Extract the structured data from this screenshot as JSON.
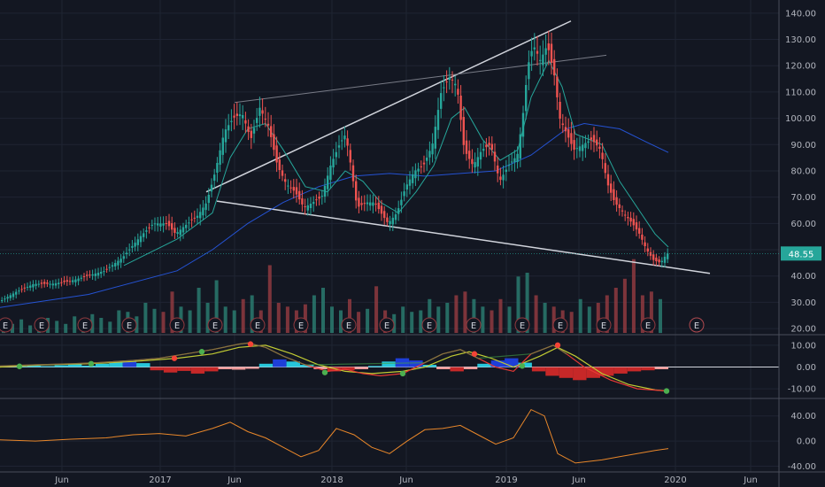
{
  "chart_data": [
    {
      "type": "candlestick",
      "panel": "price",
      "x_labels": [
        "Jun",
        "2017",
        "Jun",
        "2018",
        "Jun",
        "2019",
        "Jun",
        "2020",
        "Jun"
      ],
      "y_ticks": [
        "140.00",
        "130.00",
        "120.00",
        "110.00",
        "100.00",
        "90.00",
        "80.00",
        "70.00",
        "60.00",
        "50.00",
        "40.00",
        "30.00",
        "20.00"
      ],
      "ylim": [
        18,
        145
      ],
      "last_price": "48.55",
      "earnings_marker": "E",
      "price_path": [
        [
          0,
          30
        ],
        [
          20,
          34
        ],
        [
          40,
          37
        ],
        [
          60,
          37
        ],
        [
          80,
          38
        ],
        [
          100,
          40
        ],
        [
          120,
          42
        ],
        [
          140,
          47
        ],
        [
          160,
          55
        ],
        [
          175,
          60
        ],
        [
          190,
          60
        ],
        [
          200,
          56
        ],
        [
          210,
          59
        ],
        [
          225,
          63
        ],
        [
          235,
          68
        ],
        [
          245,
          80
        ],
        [
          255,
          95
        ],
        [
          265,
          100
        ],
        [
          275,
          102
        ],
        [
          285,
          92
        ],
        [
          295,
          104
        ],
        [
          305,
          97
        ],
        [
          315,
          82
        ],
        [
          325,
          75
        ],
        [
          335,
          72
        ],
        [
          345,
          66
        ],
        [
          355,
          68
        ],
        [
          365,
          70
        ],
        [
          375,
          82
        ],
        [
          385,
          90
        ],
        [
          392,
          94
        ],
        [
          398,
          82
        ],
        [
          405,
          66
        ],
        [
          415,
          68
        ],
        [
          425,
          68
        ],
        [
          432,
          64
        ],
        [
          440,
          60
        ],
        [
          450,
          64
        ],
        [
          460,
          74
        ],
        [
          470,
          80
        ],
        [
          480,
          82
        ],
        [
          490,
          90
        ],
        [
          500,
          110
        ],
        [
          510,
          116
        ],
        [
          518,
          112
        ],
        [
          526,
          88
        ],
        [
          536,
          82
        ],
        [
          546,
          88
        ],
        [
          556,
          90
        ],
        [
          566,
          76
        ],
        [
          576,
          82
        ],
        [
          586,
          86
        ],
        [
          592,
          100
        ],
        [
          598,
          120
        ],
        [
          604,
          128
        ],
        [
          612,
          122
        ],
        [
          620,
          128
        ],
        [
          628,
          116
        ],
        [
          634,
          100
        ],
        [
          642,
          94
        ],
        [
          650,
          88
        ],
        [
          660,
          90
        ],
        [
          670,
          92
        ],
        [
          680,
          88
        ],
        [
          688,
          75
        ],
        [
          696,
          68
        ],
        [
          706,
          64
        ],
        [
          716,
          60
        ],
        [
          724,
          56
        ],
        [
          732,
          50
        ],
        [
          740,
          46
        ],
        [
          748,
          45
        ],
        [
          755,
          48.55
        ]
      ],
      "moving_average_fast": [
        [
          140,
          44
        ],
        [
          200,
          54
        ],
        [
          240,
          64
        ],
        [
          260,
          85
        ],
        [
          280,
          96
        ],
        [
          300,
          98
        ],
        [
          320,
          88
        ],
        [
          345,
          74
        ],
        [
          370,
          72
        ],
        [
          390,
          80
        ],
        [
          410,
          76
        ],
        [
          430,
          68
        ],
        [
          450,
          64
        ],
        [
          470,
          72
        ],
        [
          490,
          82
        ],
        [
          510,
          100
        ],
        [
          525,
          104
        ],
        [
          545,
          92
        ],
        [
          565,
          84
        ],
        [
          585,
          88
        ],
        [
          600,
          108
        ],
        [
          620,
          122
        ],
        [
          635,
          112
        ],
        [
          650,
          94
        ],
        [
          680,
          90
        ],
        [
          700,
          76
        ],
        [
          720,
          66
        ],
        [
          740,
          56
        ],
        [
          755,
          51
        ]
      ],
      "moving_average_slow": [
        [
          0,
          28
        ],
        [
          100,
          33
        ],
        [
          200,
          42
        ],
        [
          240,
          50
        ],
        [
          280,
          60
        ],
        [
          320,
          68
        ],
        [
          360,
          74
        ],
        [
          400,
          78
        ],
        [
          440,
          79
        ],
        [
          480,
          78
        ],
        [
          520,
          79
        ],
        [
          560,
          80
        ],
        [
          600,
          86
        ],
        [
          640,
          96
        ],
        [
          660,
          98
        ],
        [
          700,
          96
        ],
        [
          730,
          91
        ],
        [
          755,
          87
        ]
      ],
      "trendlines": [
        {
          "from": [
            233,
            72
          ],
          "to": [
            645,
            137
          ],
          "color": "#d1d4dc",
          "weight": "bold"
        },
        {
          "from": [
            245,
            68.5
          ],
          "to": [
            802,
            41
          ],
          "color": "#d1d4dc",
          "weight": "bold"
        },
        {
          "from": [
            265,
            106
          ],
          "to": [
            685,
            124
          ],
          "color": "#787b86",
          "weight": "thin"
        }
      ],
      "volume_bars_relative": [
        0.15,
        0.12,
        0.18,
        0.1,
        0.14,
        0.2,
        0.16,
        0.12,
        0.22,
        0.18,
        0.25,
        0.2,
        0.15,
        0.3,
        0.28,
        0.22,
        0.4,
        0.32,
        0.28,
        0.55,
        0.35,
        0.3,
        0.6,
        0.4,
        0.7,
        0.35,
        0.3,
        0.45,
        0.5,
        0.3,
        0.9,
        0.4,
        0.35,
        0.3,
        0.38,
        0.5,
        0.6,
        0.35,
        0.3,
        0.45,
        0.28,
        0.32,
        0.62,
        0.3,
        0.25,
        0.35,
        0.28,
        0.3,
        0.45,
        0.35,
        0.4,
        0.5,
        0.55,
        0.45,
        0.35,
        0.3,
        0.45,
        0.35,
        0.75,
        0.8,
        0.5,
        0.4,
        0.35,
        0.3,
        0.28,
        0.45,
        0.35,
        0.4,
        0.5,
        0.6,
        0.72,
        0.98,
        0.5,
        0.55,
        0.45
      ],
      "earnings_x": [
        6,
        47,
        96,
        146,
        200,
        243,
        291,
        340,
        394,
        437,
        485,
        535,
        590,
        633,
        682,
        732,
        787
      ]
    },
    {
      "type": "line",
      "panel": "macd",
      "y_ticks": [
        "10.00",
        "0.00",
        "-10.00"
      ],
      "ylim": [
        -14,
        14
      ],
      "macd_line": [
        [
          0,
          0.5
        ],
        [
          40,
          1
        ],
        [
          80,
          1.5
        ],
        [
          110,
          2
        ],
        [
          150,
          3
        ],
        [
          180,
          4
        ],
        [
          210,
          6
        ],
        [
          240,
          8
        ],
        [
          270,
          10.5
        ],
        [
          280,
          11
        ],
        [
          300,
          9
        ],
        [
          320,
          5
        ],
        [
          345,
          1
        ],
        [
          370,
          -2
        ],
        [
          390,
          -1
        ],
        [
          410,
          -3
        ],
        [
          430,
          -4
        ],
        [
          455,
          -3
        ],
        [
          480,
          2
        ],
        [
          500,
          6
        ],
        [
          520,
          8
        ],
        [
          540,
          4
        ],
        [
          560,
          0
        ],
        [
          580,
          -2
        ],
        [
          600,
          6
        ],
        [
          625,
          10
        ],
        [
          640,
          6
        ],
        [
          660,
          0
        ],
        [
          690,
          -6
        ],
        [
          720,
          -10
        ],
        [
          755,
          -11
        ]
      ],
      "signal_line": [
        [
          0,
          0
        ],
        [
          50,
          1
        ],
        [
          100,
          1.5
        ],
        [
          150,
          2.5
        ],
        [
          200,
          4
        ],
        [
          240,
          6
        ],
        [
          270,
          9
        ],
        [
          300,
          10
        ],
        [
          330,
          6
        ],
        [
          360,
          1
        ],
        [
          390,
          -2
        ],
        [
          420,
          -3
        ],
        [
          455,
          -2
        ],
        [
          480,
          0
        ],
        [
          510,
          5
        ],
        [
          530,
          7
        ],
        [
          555,
          4
        ],
        [
          580,
          0
        ],
        [
          610,
          5
        ],
        [
          630,
          9
        ],
        [
          650,
          5
        ],
        [
          680,
          -3
        ],
        [
          710,
          -8
        ],
        [
          740,
          -10.5
        ],
        [
          755,
          -11
        ]
      ],
      "histogram": [
        0.5,
        0.3,
        0.6,
        0.4,
        0.8,
        1.2,
        0.6,
        1.5,
        2.5,
        3,
        1.8,
        -1.5,
        -2.5,
        -1.8,
        -3,
        -2,
        -1,
        -1.2,
        -0.8,
        1.5,
        3.5,
        2.5,
        1,
        -1,
        -2,
        -1.5,
        -1,
        0.5,
        2.5,
        4,
        3,
        1,
        -1,
        -2,
        -1,
        1.5,
        3,
        4,
        2,
        -2,
        -4,
        -5,
        -6,
        -5,
        -4,
        -3,
        -2,
        -1.5,
        -1
      ],
      "cross_markers": [
        {
          "x": 22,
          "v": 0.3,
          "up": true
        },
        {
          "x": 103,
          "v": 1.5,
          "up": true
        },
        {
          "x": 197,
          "v": 4,
          "up": false
        },
        {
          "x": 228,
          "v": 7,
          "up": true
        },
        {
          "x": 283,
          "v": 10.5,
          "up": false
        },
        {
          "x": 367,
          "v": -2.5,
          "up": true
        },
        {
          "x": 455,
          "v": -3,
          "up": true
        },
        {
          "x": 536,
          "v": 6,
          "up": false
        },
        {
          "x": 590,
          "v": 0.5,
          "up": true
        },
        {
          "x": 630,
          "v": 10,
          "up": false
        },
        {
          "x": 753,
          "v": -11,
          "up": true
        }
      ]
    },
    {
      "type": "line",
      "panel": "oscillator",
      "y_ticks": [
        "40.00",
        "0.00",
        "-40.00"
      ],
      "ylim": [
        -45,
        65
      ],
      "values": [
        [
          0,
          2
        ],
        [
          40,
          0
        ],
        [
          80,
          3
        ],
        [
          120,
          5
        ],
        [
          150,
          10
        ],
        [
          180,
          12
        ],
        [
          210,
          8
        ],
        [
          240,
          20
        ],
        [
          260,
          30
        ],
        [
          280,
          15
        ],
        [
          300,
          5
        ],
        [
          320,
          -10
        ],
        [
          340,
          -25
        ],
        [
          360,
          -15
        ],
        [
          380,
          20
        ],
        [
          400,
          10
        ],
        [
          420,
          -10
        ],
        [
          440,
          -20
        ],
        [
          460,
          0
        ],
        [
          480,
          18
        ],
        [
          500,
          20
        ],
        [
          520,
          25
        ],
        [
          540,
          10
        ],
        [
          560,
          -5
        ],
        [
          580,
          5
        ],
        [
          600,
          50
        ],
        [
          615,
          40
        ],
        [
          630,
          -20
        ],
        [
          650,
          -35
        ],
        [
          680,
          -30
        ],
        [
          700,
          -25
        ],
        [
          720,
          -20
        ],
        [
          740,
          -15
        ],
        [
          755,
          -12
        ]
      ],
      "color": "#e8872a"
    }
  ]
}
